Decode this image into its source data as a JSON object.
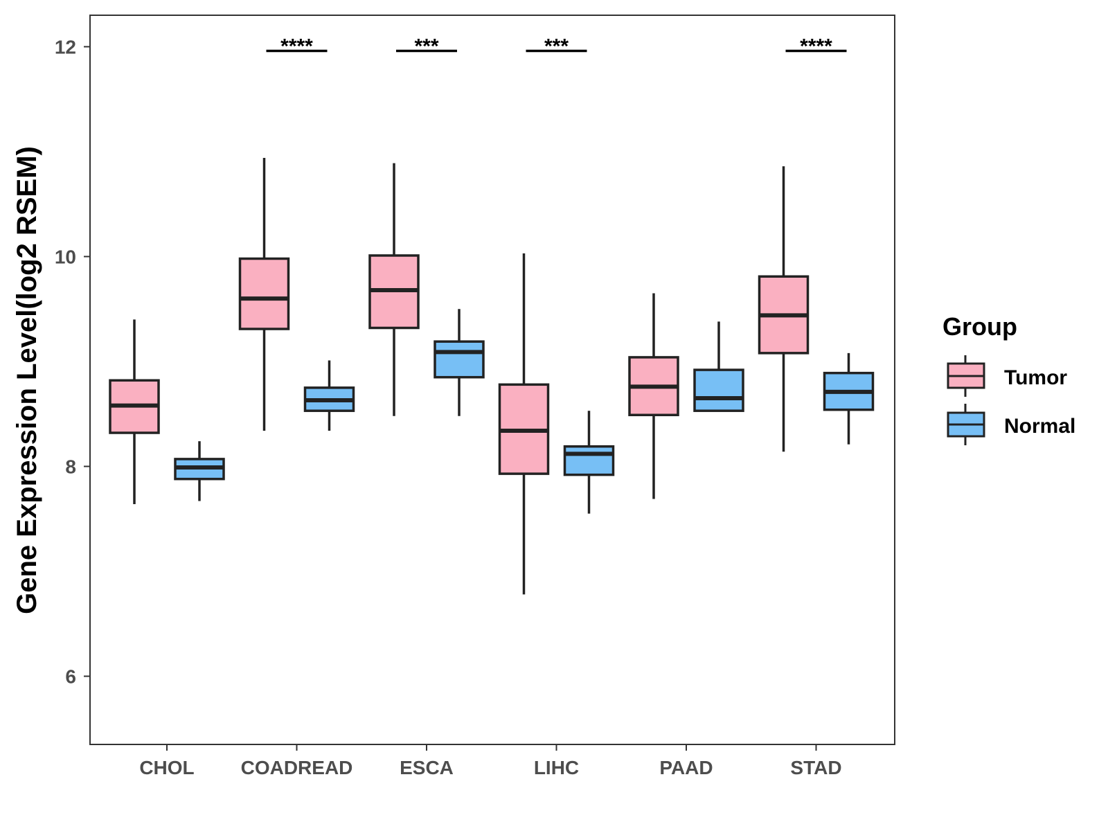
{
  "chart_data": {
    "type": "boxplot",
    "title": "",
    "xlabel": "",
    "ylabel": "Gene Expression Level(log2 RSEM)",
    "ylim": [
      5.35,
      12.3
    ],
    "yticks": [
      6,
      8,
      10,
      12
    ],
    "ytick_labels": [
      "6",
      "8",
      "10",
      "12"
    ],
    "categories": [
      "CHOL",
      "COADREAD",
      "ESCA",
      "LIHC",
      "PAAD",
      "STAD"
    ],
    "legend": {
      "title": "Group",
      "position": "right",
      "entries": [
        {
          "name": "Tumor",
          "color": "#FAB0C1"
        },
        {
          "name": "Normal",
          "color": "#77BFF5"
        }
      ]
    },
    "series": [
      {
        "name": "Tumor",
        "color": "#FAB0C1",
        "boxes": [
          {
            "category": "CHOL",
            "min": 7.64,
            "q1": 8.32,
            "median": 8.58,
            "q3": 8.82,
            "max": 9.4
          },
          {
            "category": "COADREAD",
            "min": 8.34,
            "q1": 9.31,
            "median": 9.6,
            "q3": 9.98,
            "max": 10.94
          },
          {
            "category": "ESCA",
            "min": 8.48,
            "q1": 9.32,
            "median": 9.68,
            "q3": 10.01,
            "max": 10.89
          },
          {
            "category": "LIHC",
            "min": 6.78,
            "q1": 7.93,
            "median": 8.34,
            "q3": 8.78,
            "max": 10.03
          },
          {
            "category": "PAAD",
            "min": 7.69,
            "q1": 8.49,
            "median": 8.76,
            "q3": 9.04,
            "max": 9.65
          },
          {
            "category": "STAD",
            "min": 8.14,
            "q1": 9.08,
            "median": 9.44,
            "q3": 9.81,
            "max": 10.86
          }
        ]
      },
      {
        "name": "Normal",
        "color": "#77BFF5",
        "boxes": [
          {
            "category": "CHOL",
            "min": 7.67,
            "q1": 7.88,
            "median": 7.99,
            "q3": 8.07,
            "max": 8.24
          },
          {
            "category": "COADREAD",
            "min": 8.34,
            "q1": 8.53,
            "median": 8.63,
            "q3": 8.75,
            "max": 9.01
          },
          {
            "category": "ESCA",
            "min": 8.48,
            "q1": 8.85,
            "median": 9.09,
            "q3": 9.19,
            "max": 9.5
          },
          {
            "category": "LIHC",
            "min": 7.55,
            "q1": 7.92,
            "median": 8.12,
            "q3": 8.19,
            "max": 8.53
          },
          {
            "category": "PAAD",
            "min": 8.53,
            "q1": 8.53,
            "median": 8.65,
            "q3": 8.92,
            "max": 9.38
          },
          {
            "category": "STAD",
            "min": 8.21,
            "q1": 8.54,
            "median": 8.71,
            "q3": 8.89,
            "max": 9.08
          }
        ]
      }
    ],
    "significance": [
      {
        "category": "COADREAD",
        "label": "****",
        "y": 11.96
      },
      {
        "category": "ESCA",
        "label": "***",
        "y": 11.96
      },
      {
        "category": "LIHC",
        "label": "***",
        "y": 11.96
      },
      {
        "category": "STAD",
        "label": "****",
        "y": 11.96
      }
    ],
    "grid": false
  }
}
